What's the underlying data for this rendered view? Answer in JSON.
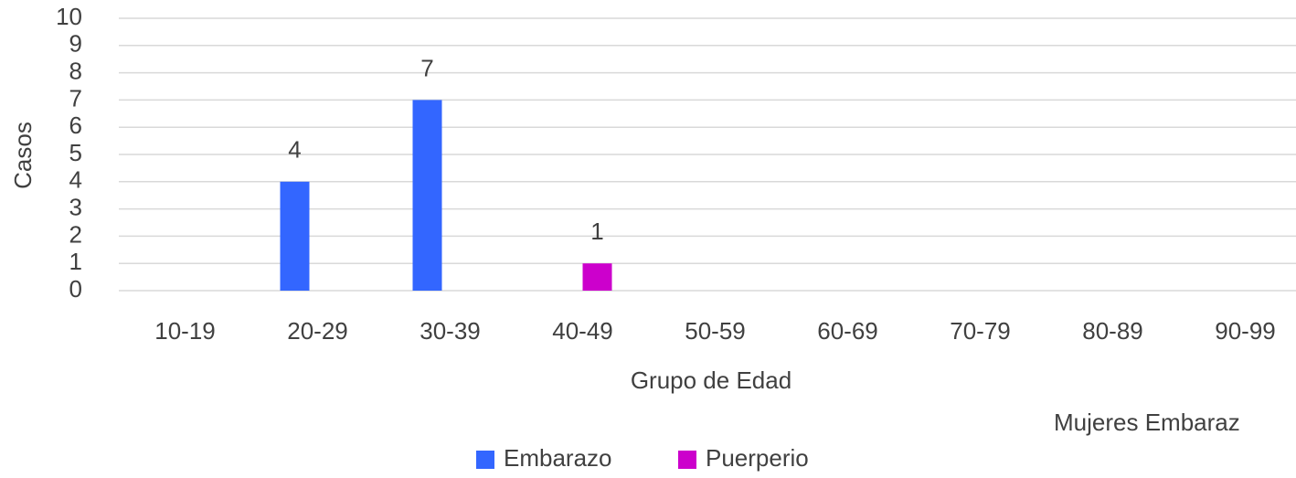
{
  "chart_data": {
    "type": "bar",
    "x_label": "Grupo de Edad",
    "y_label": "Casos",
    "annotation": "Mujeres Embaraz",
    "categories": [
      "10-19",
      "20-29",
      "30-39",
      "40-49",
      "50-59",
      "60-69",
      "70-79",
      "80-89",
      "90-99"
    ],
    "series": [
      {
        "name": "Embarazo",
        "color": "#3366ff",
        "values": [
          null,
          4,
          7,
          null,
          null,
          null,
          null,
          null,
          null
        ]
      },
      {
        "name": "Puerperio",
        "color": "#cc00cc",
        "values": [
          null,
          null,
          null,
          1,
          null,
          null,
          null,
          null,
          null
        ]
      }
    ],
    "ylim": [
      0,
      10
    ],
    "yticks": [
      0,
      1,
      2,
      3,
      4,
      5,
      6,
      7,
      8,
      9,
      10
    ],
    "grid": true,
    "legend": "bottom"
  }
}
